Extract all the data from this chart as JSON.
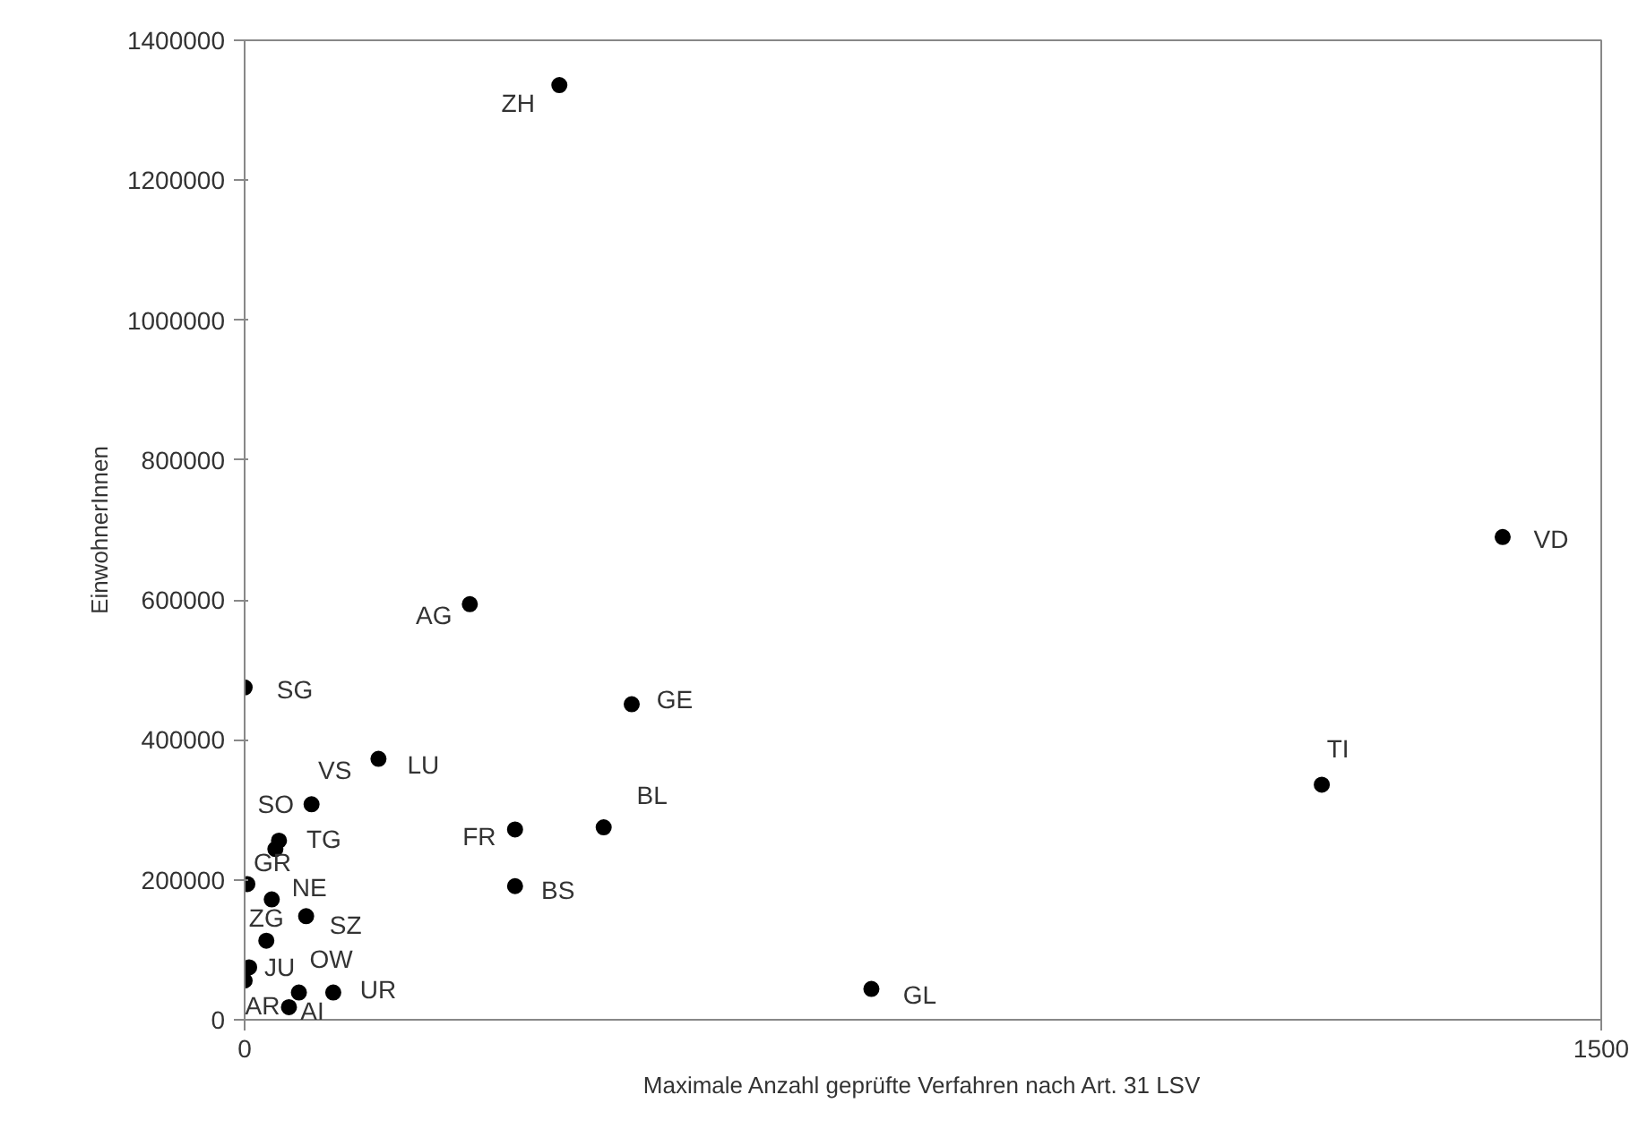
{
  "chart_data": {
    "type": "scatter",
    "xlabel": "Maximale Anzahl geprüfte Verfahren nach Art. 31 LSV",
    "ylabel": "EinwohnerInnen",
    "xlim": [
      0,
      1500
    ],
    "xticks": [
      0,
      1500
    ],
    "ylim": [
      0,
      1400000
    ],
    "yticks": [
      0,
      200000,
      400000,
      600000,
      800000,
      1000000,
      1200000,
      1400000
    ],
    "grid": false,
    "marker": "circle",
    "series": [
      {
        "color": "#000000",
        "x": [
          348,
          249,
          428,
          397,
          299,
          299,
          1391,
          1191,
          693,
          0,
          148,
          74,
          38,
          34,
          3,
          30,
          68,
          24,
          5,
          0,
          60,
          98,
          49
        ],
        "values": [
          1336000,
          594000,
          451000,
          275000,
          272000,
          191000,
          690000,
          336000,
          44000,
          475000,
          373000,
          308000,
          256000,
          244000,
          194000,
          172000,
          148000,
          113000,
          75000,
          56000,
          39000,
          39000,
          18000
        ]
      }
    ],
    "annotations": [
      {
        "text": "ZH",
        "x": 348,
        "y": 1336000
      },
      {
        "text": "AG",
        "x": 249,
        "y": 594000
      },
      {
        "text": "GE",
        "x": 428,
        "y": 451000
      },
      {
        "text": "BL",
        "x": 397,
        "y": 275000
      },
      {
        "text": "FR",
        "x": 299,
        "y": 272000
      },
      {
        "text": "BS",
        "x": 299,
        "y": 191000
      },
      {
        "text": "VD",
        "x": 1391,
        "y": 690000
      },
      {
        "text": "TI",
        "x": 1191,
        "y": 336000
      },
      {
        "text": "GL",
        "x": 693,
        "y": 44000
      },
      {
        "text": "SG",
        "x": 0,
        "y": 475000
      },
      {
        "text": "LU",
        "x": 148,
        "y": 373000
      },
      {
        "text": "VS",
        "x": 74,
        "y": 308000
      },
      {
        "text": "SO",
        "x": 74,
        "y": 308000
      },
      {
        "text": "TG",
        "x": 38,
        "y": 256000
      },
      {
        "text": "GR",
        "x": 3,
        "y": 194000
      },
      {
        "text": "NE",
        "x": 30,
        "y": 172000
      },
      {
        "text": "ZG",
        "x": 24,
        "y": 113000
      },
      {
        "text": "SZ",
        "x": 68,
        "y": 148000
      },
      {
        "text": "OW",
        "x": 60,
        "y": 39000
      },
      {
        "text": "JU",
        "x": 5,
        "y": 75000
      },
      {
        "text": "AR",
        "x": 0,
        "y": 56000
      },
      {
        "text": "UR",
        "x": 98,
        "y": 39000
      },
      {
        "text": "AI",
        "x": 49,
        "y": 18000
      }
    ]
  }
}
